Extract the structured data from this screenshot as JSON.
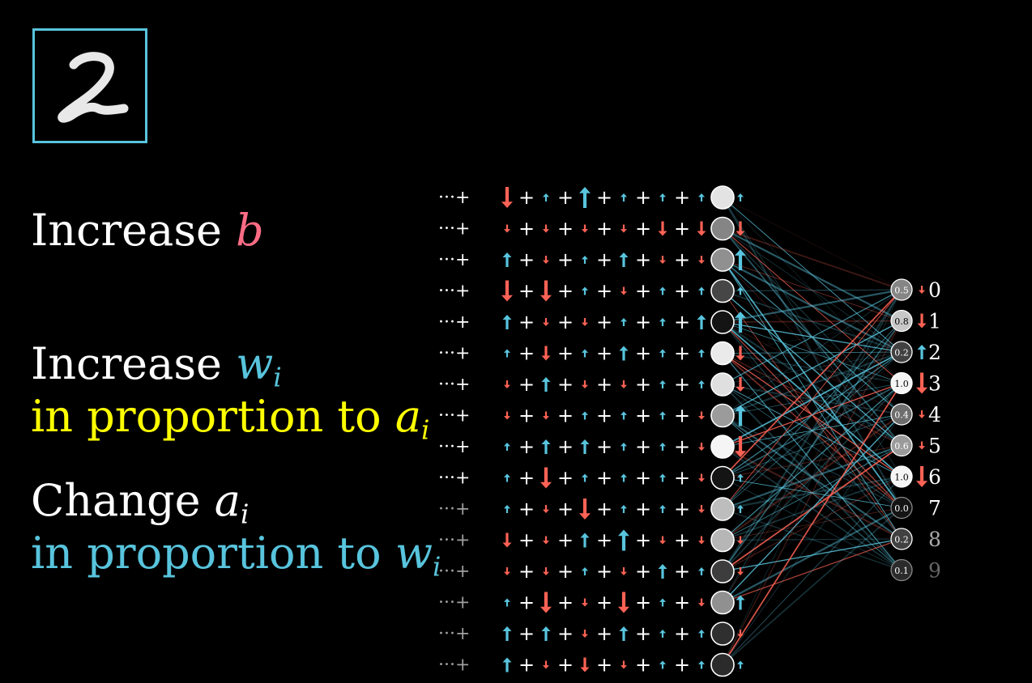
{
  "digit_label": "2",
  "rules": {
    "rule1": {
      "text": "Increase",
      "var": "b"
    },
    "rule2": {
      "text": "Increase",
      "var": "w",
      "sub": "i"
    },
    "rule2b": {
      "text": "in proportion to",
      "var": "a",
      "sub": "i"
    },
    "rule3": {
      "text": "Change",
      "var": "a",
      "sub": "i"
    },
    "rule3b": {
      "text": "in proportion to",
      "var": "w",
      "sub": "i"
    }
  },
  "colors": {
    "blue": "#58c4dd",
    "red": "#fc6255",
    "yellow": "#ffff00",
    "pink": "#fc6c85"
  },
  "row_prefix": "···+",
  "hidden_activations": [
    0.92,
    0.5,
    0.55,
    0.22,
    0.0,
    0.95,
    0.9,
    0.6,
    1.0,
    0.0,
    0.75,
    0.72,
    0.18,
    0.55,
    0.12,
    0.1
  ],
  "arrow_rows": [
    [
      -3,
      1,
      3,
      1,
      1,
      1,
      1
    ],
    [
      -1,
      -1,
      -1,
      -1,
      -2,
      -2,
      -2
    ],
    [
      2,
      -1,
      1,
      2,
      -1,
      -1,
      3
    ],
    [
      -3,
      -3,
      1,
      -1,
      1,
      1,
      1
    ],
    [
      2,
      -1,
      -1,
      1,
      1,
      2,
      3
    ],
    [
      1,
      -2,
      1,
      2,
      1,
      1,
      -2
    ],
    [
      -1,
      2,
      -1,
      -1,
      1,
      1,
      -2
    ],
    [
      -1,
      -1,
      1,
      1,
      1,
      -1,
      3
    ],
    [
      1,
      2,
      2,
      1,
      1,
      -1,
      -3
    ],
    [
      1,
      -3,
      1,
      1,
      1,
      -1,
      1
    ],
    [
      1,
      -1,
      -3,
      1,
      1,
      -1,
      1
    ],
    [
      -2,
      -1,
      2,
      3,
      -1,
      -1,
      -1
    ],
    [
      -1,
      -1,
      1,
      -1,
      2,
      1,
      -1
    ],
    [
      1,
      -3,
      -1,
      -3,
      1,
      -1,
      2
    ],
    [
      2,
      2,
      -1,
      2,
      1,
      1,
      -1
    ],
    [
      2,
      -1,
      -2,
      -1,
      1,
      1,
      1
    ]
  ],
  "outputs": [
    {
      "label": "0",
      "activation": "0.5",
      "change": -1
    },
    {
      "label": "1",
      "activation": "0.8",
      "change": -2
    },
    {
      "label": "2",
      "activation": "0.2",
      "change": 2
    },
    {
      "label": "3",
      "activation": "1.0",
      "change": -3
    },
    {
      "label": "4",
      "activation": "0.4",
      "change": -1
    },
    {
      "label": "5",
      "activation": "0.6",
      "change": -1
    },
    {
      "label": "6",
      "activation": "1.0",
      "change": -3
    },
    {
      "label": "7",
      "activation": "0.0",
      "change": 0
    },
    {
      "label": "8",
      "activation": "0.2",
      "change": 0
    },
    {
      "label": "9",
      "activation": "0.1",
      "change": 0
    }
  ]
}
